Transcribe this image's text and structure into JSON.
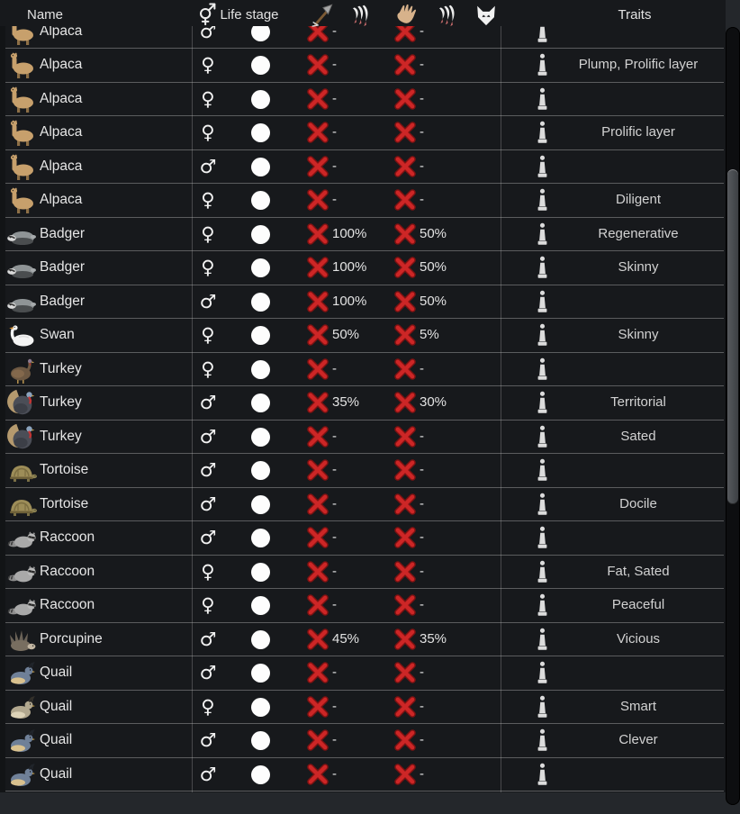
{
  "header": {
    "name_label": "Name",
    "life_stage_label": "Life stage",
    "traits_label": "Traits",
    "icons": [
      "gender-combined-icon",
      "hunt-arrow-icon",
      "manhunter-claws-icon",
      "tame-hand-icon",
      "manhunter-claws-icon",
      "predator-head-icon"
    ]
  },
  "gender_glyphs": {
    "male": "♂",
    "female": "♀"
  },
  "colors": {
    "row_background": "#17191c",
    "panel_background": "#24272b",
    "checkbox_x_red": "#cd2626",
    "text_primary": "#e6e6e6",
    "text_traits": "#d2d2d2",
    "life_stage_dot": "#fdfdfd"
  },
  "rows": [
    {
      "species": "Alpaca",
      "icon": "alpaca",
      "gender": "male",
      "life_stage": "adult",
      "hunt_checked": false,
      "hunt_chance": "-",
      "tame_checked": false,
      "tame_chance": "-",
      "traits": ""
    },
    {
      "species": "Alpaca",
      "icon": "alpaca",
      "gender": "female",
      "life_stage": "adult",
      "hunt_checked": false,
      "hunt_chance": "-",
      "tame_checked": false,
      "tame_chance": "-",
      "traits": "Plump, Prolific layer"
    },
    {
      "species": "Alpaca",
      "icon": "alpaca",
      "gender": "female",
      "life_stage": "adult",
      "hunt_checked": false,
      "hunt_chance": "-",
      "tame_checked": false,
      "tame_chance": "-",
      "traits": ""
    },
    {
      "species": "Alpaca",
      "icon": "alpaca",
      "gender": "female",
      "life_stage": "adult",
      "hunt_checked": false,
      "hunt_chance": "-",
      "tame_checked": false,
      "tame_chance": "-",
      "traits": "Prolific layer"
    },
    {
      "species": "Alpaca",
      "icon": "alpaca",
      "gender": "male",
      "life_stage": "adult",
      "hunt_checked": false,
      "hunt_chance": "-",
      "tame_checked": false,
      "tame_chance": "-",
      "traits": ""
    },
    {
      "species": "Alpaca",
      "icon": "alpaca",
      "gender": "female",
      "life_stage": "adult",
      "hunt_checked": false,
      "hunt_chance": "-",
      "tame_checked": false,
      "tame_chance": "-",
      "traits": "Diligent"
    },
    {
      "species": "Badger",
      "icon": "badger",
      "gender": "female",
      "life_stage": "adult",
      "hunt_checked": false,
      "hunt_chance": "100%",
      "tame_checked": false,
      "tame_chance": "50%",
      "traits": "Regenerative"
    },
    {
      "species": "Badger",
      "icon": "badger",
      "gender": "female",
      "life_stage": "adult",
      "hunt_checked": false,
      "hunt_chance": "100%",
      "tame_checked": false,
      "tame_chance": "50%",
      "traits": "Skinny"
    },
    {
      "species": "Badger",
      "icon": "badger",
      "gender": "male",
      "life_stage": "adult",
      "hunt_checked": false,
      "hunt_chance": "100%",
      "tame_checked": false,
      "tame_chance": "50%",
      "traits": ""
    },
    {
      "species": "Swan",
      "icon": "swan",
      "gender": "female",
      "life_stage": "adult",
      "hunt_checked": false,
      "hunt_chance": "50%",
      "tame_checked": false,
      "tame_chance": "5%",
      "traits": "Skinny"
    },
    {
      "species": "Turkey",
      "icon": "turkey-hen",
      "gender": "female",
      "life_stage": "adult",
      "hunt_checked": false,
      "hunt_chance": "-",
      "tame_checked": false,
      "tame_chance": "-",
      "traits": ""
    },
    {
      "species": "Turkey",
      "icon": "turkey-tom",
      "gender": "male",
      "life_stage": "adult",
      "hunt_checked": false,
      "hunt_chance": "35%",
      "tame_checked": false,
      "tame_chance": "30%",
      "traits": "Territorial"
    },
    {
      "species": "Turkey",
      "icon": "turkey-tom",
      "gender": "male",
      "life_stage": "adult",
      "hunt_checked": false,
      "hunt_chance": "-",
      "tame_checked": false,
      "tame_chance": "-",
      "traits": "Sated"
    },
    {
      "species": "Tortoise",
      "icon": "tortoise",
      "gender": "male",
      "life_stage": "adult",
      "hunt_checked": false,
      "hunt_chance": "-",
      "tame_checked": false,
      "tame_chance": "-",
      "traits": ""
    },
    {
      "species": "Tortoise",
      "icon": "tortoise",
      "gender": "male",
      "life_stage": "adult",
      "hunt_checked": false,
      "hunt_chance": "-",
      "tame_checked": false,
      "tame_chance": "-",
      "traits": "Docile"
    },
    {
      "species": "Raccoon",
      "icon": "raccoon",
      "gender": "male",
      "life_stage": "adult",
      "hunt_checked": false,
      "hunt_chance": "-",
      "tame_checked": false,
      "tame_chance": "-",
      "traits": ""
    },
    {
      "species": "Raccoon",
      "icon": "raccoon",
      "gender": "female",
      "life_stage": "adult",
      "hunt_checked": false,
      "hunt_chance": "-",
      "tame_checked": false,
      "tame_chance": "-",
      "traits": "Fat, Sated"
    },
    {
      "species": "Raccoon",
      "icon": "raccoon",
      "gender": "female",
      "life_stage": "adult",
      "hunt_checked": false,
      "hunt_chance": "-",
      "tame_checked": false,
      "tame_chance": "-",
      "traits": "Peaceful"
    },
    {
      "species": "Porcupine",
      "icon": "porcupine",
      "gender": "male",
      "life_stage": "adult",
      "hunt_checked": false,
      "hunt_chance": "45%",
      "tame_checked": false,
      "tame_chance": "35%",
      "traits": "Vicious"
    },
    {
      "species": "Quail",
      "icon": "quail-male",
      "gender": "male",
      "life_stage": "adult",
      "hunt_checked": false,
      "hunt_chance": "-",
      "tame_checked": false,
      "tame_chance": "-",
      "traits": ""
    },
    {
      "species": "Quail",
      "icon": "quail-female",
      "gender": "female",
      "life_stage": "adult",
      "hunt_checked": false,
      "hunt_chance": "-",
      "tame_checked": false,
      "tame_chance": "-",
      "traits": "Smart"
    },
    {
      "species": "Quail",
      "icon": "quail-male",
      "gender": "male",
      "life_stage": "adult",
      "hunt_checked": false,
      "hunt_chance": "-",
      "tame_checked": false,
      "tame_chance": "-",
      "traits": "Clever"
    },
    {
      "species": "Quail",
      "icon": "quail-male",
      "gender": "male",
      "life_stage": "adult",
      "hunt_checked": false,
      "hunt_chance": "-",
      "tame_checked": false,
      "tame_chance": "-",
      "traits": ""
    }
  ]
}
